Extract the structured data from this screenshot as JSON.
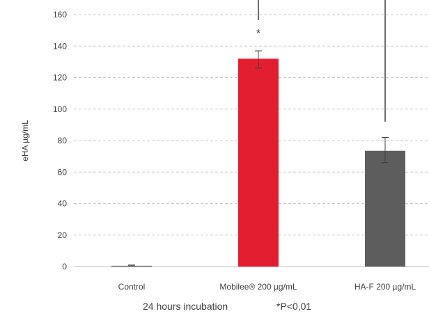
{
  "chart_data": {
    "type": "bar",
    "categories": [
      "Control",
      "Mobilee® 200 µg/mL",
      "HA-F 200 µg/mL"
    ],
    "values": [
      0.5,
      132,
      73.5
    ],
    "error_low": [
      0.5,
      126,
      66
    ],
    "error_high": [
      1,
      137,
      82
    ],
    "colors": [
      "#5a5a5a",
      "#e31e30",
      "#5d5d5d"
    ],
    "ylabel": "eHA  µg/mL",
    "yticks": [
      0,
      20,
      40,
      60,
      80,
      100,
      120,
      140,
      160
    ],
    "ylim": [
      0,
      160
    ],
    "grid": true,
    "annotation": "*",
    "footer": {
      "left": "24 hours incubation",
      "right": "*P<0,01"
    }
  }
}
